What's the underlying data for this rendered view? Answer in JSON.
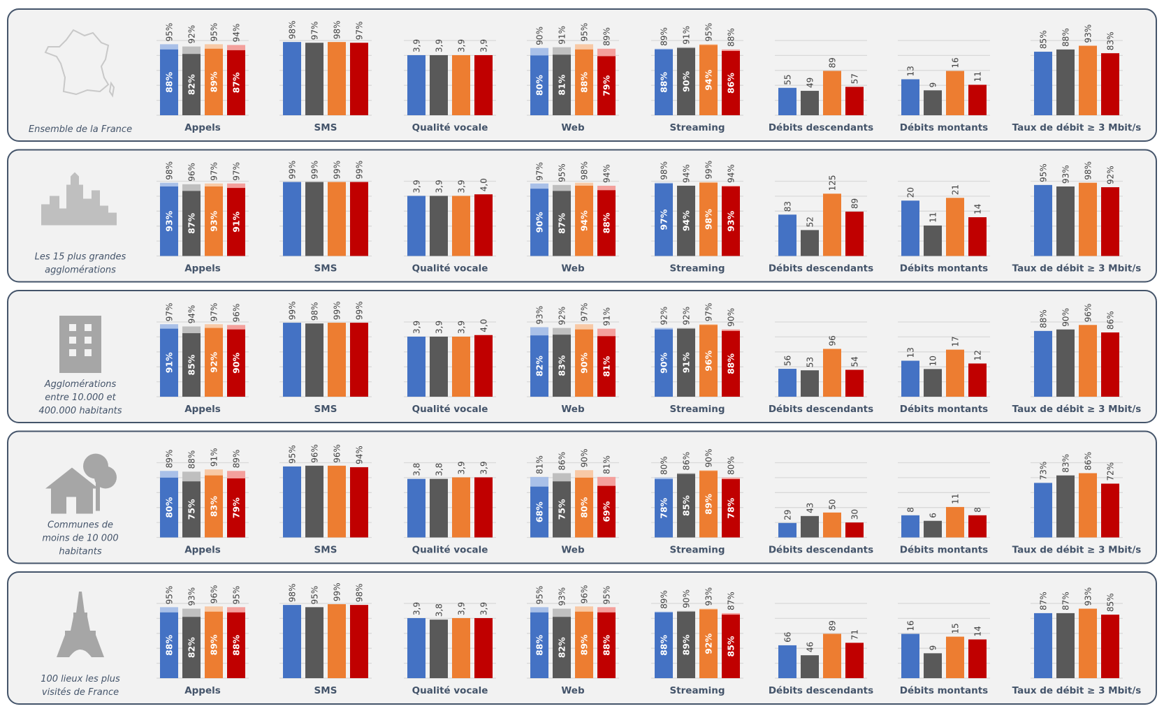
{
  "colors": {
    "operators": [
      "#4472c4",
      "#595959",
      "#ed7d31",
      "#c00000"
    ],
    "operators_light": [
      "#a9c0e8",
      "#bfbfbf",
      "#f8c9a6",
      "#f4a09c"
    ],
    "panel_bg": "#f2f2f2",
    "panel_border": "#44546a"
  },
  "metrics": [
    "Appels",
    "SMS",
    "Qualité vocale",
    "Web",
    "Streaming",
    "Débits descendants",
    "Débits montants",
    "Taux de débit ≥ 3 Mbit/s"
  ],
  "chart_data": [
    {
      "type": "bar",
      "segment_lines": [
        "Ensemble de la France"
      ],
      "icon": "france-map-icon",
      "panels": [
        {
          "title": "Appels",
          "kind": "percent",
          "values": [
            95,
            92,
            95,
            94
          ],
          "inner_values": [
            88,
            82,
            89,
            87
          ]
        },
        {
          "title": "SMS",
          "kind": "percent",
          "values": [
            98,
            97,
            98,
            97
          ]
        },
        {
          "title": "Qualité vocale",
          "kind": "score",
          "values": [
            3.9,
            3.9,
            3.9,
            3.9
          ]
        },
        {
          "title": "Web",
          "kind": "percent",
          "values": [
            90,
            91,
            95,
            89
          ],
          "inner_values": [
            80,
            81,
            88,
            79
          ]
        },
        {
          "title": "Streaming",
          "kind": "percent",
          "values": [
            89,
            91,
            95,
            88
          ],
          "inner_values": [
            88,
            90,
            94,
            86
          ]
        },
        {
          "title": "Débits descendants",
          "kind": "down",
          "values": [
            55,
            49,
            89,
            57
          ]
        },
        {
          "title": "Débits montants",
          "kind": "up",
          "values": [
            13,
            9,
            16,
            11
          ]
        },
        {
          "title": "Taux de débit ≥ 3 Mbit/s",
          "kind": "percent",
          "values": [
            85,
            88,
            93,
            83
          ]
        }
      ]
    },
    {
      "type": "bar",
      "segment_lines": [
        "Les 15 plus grandes",
        "agglomérations"
      ],
      "icon": "city-skyline-icon",
      "panels": [
        {
          "title": "Appels",
          "kind": "percent",
          "values": [
            98,
            96,
            97,
            97
          ],
          "inner_values": [
            93,
            87,
            93,
            91
          ]
        },
        {
          "title": "SMS",
          "kind": "percent",
          "values": [
            99,
            99,
            99,
            99
          ]
        },
        {
          "title": "Qualité vocale",
          "kind": "score",
          "values": [
            3.9,
            3.9,
            3.9,
            4.0
          ]
        },
        {
          "title": "Web",
          "kind": "percent",
          "values": [
            97,
            95,
            98,
            94
          ],
          "inner_values": [
            90,
            87,
            94,
            88
          ]
        },
        {
          "title": "Streaming",
          "kind": "percent",
          "values": [
            98,
            94,
            99,
            94
          ],
          "inner_values": [
            97,
            94,
            98,
            93
          ]
        },
        {
          "title": "Débits descendants",
          "kind": "down",
          "values": [
            83,
            52,
            125,
            89
          ]
        },
        {
          "title": "Débits montants",
          "kind": "up",
          "values": [
            20,
            11,
            21,
            14
          ]
        },
        {
          "title": "Taux de débit ≥ 3 Mbit/s",
          "kind": "percent",
          "values": [
            95,
            93,
            98,
            92
          ]
        }
      ]
    },
    {
      "type": "bar",
      "segment_lines": [
        "Agglomérations",
        "entre 10.000 et",
        "400.000 habitants"
      ],
      "icon": "building-icon",
      "panels": [
        {
          "title": "Appels",
          "kind": "percent",
          "values": [
            97,
            94,
            97,
            96
          ],
          "inner_values": [
            91,
            85,
            92,
            90
          ]
        },
        {
          "title": "SMS",
          "kind": "percent",
          "values": [
            99,
            98,
            99,
            99
          ]
        },
        {
          "title": "Qualité vocale",
          "kind": "score",
          "values": [
            3.9,
            3.9,
            3.9,
            4.0
          ]
        },
        {
          "title": "Web",
          "kind": "percent",
          "values": [
            93,
            92,
            97,
            91
          ],
          "inner_values": [
            82,
            83,
            90,
            81
          ]
        },
        {
          "title": "Streaming",
          "kind": "percent",
          "values": [
            92,
            92,
            97,
            90
          ],
          "inner_values": [
            90,
            91,
            96,
            88
          ]
        },
        {
          "title": "Débits descendants",
          "kind": "down",
          "values": [
            56,
            53,
            96,
            54
          ]
        },
        {
          "title": "Débits montants",
          "kind": "up",
          "values": [
            13,
            10,
            17,
            12
          ]
        },
        {
          "title": "Taux de débit ≥ 3 Mbit/s",
          "kind": "percent",
          "values": [
            88,
            90,
            96,
            86
          ]
        }
      ]
    },
    {
      "type": "bar",
      "segment_lines": [
        "Communes de",
        "moins de 10 000",
        "habitants"
      ],
      "icon": "house-tree-icon",
      "panels": [
        {
          "title": "Appels",
          "kind": "percent",
          "values": [
            89,
            88,
            91,
            89
          ],
          "inner_values": [
            80,
            75,
            83,
            79
          ]
        },
        {
          "title": "SMS",
          "kind": "percent",
          "values": [
            95,
            96,
            96,
            94
          ]
        },
        {
          "title": "Qualité vocale",
          "kind": "score",
          "values": [
            3.8,
            3.8,
            3.9,
            3.9
          ]
        },
        {
          "title": "Web",
          "kind": "percent",
          "values": [
            81,
            86,
            90,
            81
          ],
          "inner_values": [
            68,
            75,
            80,
            69
          ]
        },
        {
          "title": "Streaming",
          "kind": "percent",
          "values": [
            80,
            86,
            90,
            80
          ],
          "inner_values": [
            78,
            85,
            89,
            78
          ]
        },
        {
          "title": "Débits descendants",
          "kind": "down",
          "values": [
            29,
            43,
            50,
            30
          ]
        },
        {
          "title": "Débits montants",
          "kind": "up",
          "values": [
            8,
            6,
            11,
            8
          ]
        },
        {
          "title": "Taux de débit ≥ 3 Mbit/s",
          "kind": "percent",
          "values": [
            73,
            83,
            86,
            72
          ]
        }
      ]
    },
    {
      "type": "bar",
      "segment_lines": [
        "100 lieux les plus",
        "visités de France"
      ],
      "icon": "eiffel-tower-icon",
      "panels": [
        {
          "title": "Appels",
          "kind": "percent",
          "values": [
            95,
            93,
            96,
            95
          ],
          "inner_values": [
            88,
            82,
            89,
            88
          ]
        },
        {
          "title": "SMS",
          "kind": "percent",
          "values": [
            98,
            95,
            99,
            98
          ]
        },
        {
          "title": "Qualité vocale",
          "kind": "score",
          "values": [
            3.9,
            3.8,
            3.9,
            3.9
          ]
        },
        {
          "title": "Web",
          "kind": "percent",
          "values": [
            95,
            93,
            96,
            95
          ],
          "inner_values": [
            88,
            82,
            89,
            88
          ]
        },
        {
          "title": "Streaming",
          "kind": "percent",
          "values": [
            89,
            90,
            93,
            87
          ],
          "inner_values": [
            88,
            89,
            92,
            85
          ]
        },
        {
          "title": "Débits descendants",
          "kind": "down",
          "values": [
            66,
            46,
            89,
            71
          ]
        },
        {
          "title": "Débits montants",
          "kind": "up",
          "values": [
            16,
            9,
            15,
            14
          ]
        },
        {
          "title": "Taux de débit ≥ 3 Mbit/s",
          "kind": "percent",
          "values": [
            87,
            87,
            93,
            85
          ]
        }
      ]
    }
  ]
}
